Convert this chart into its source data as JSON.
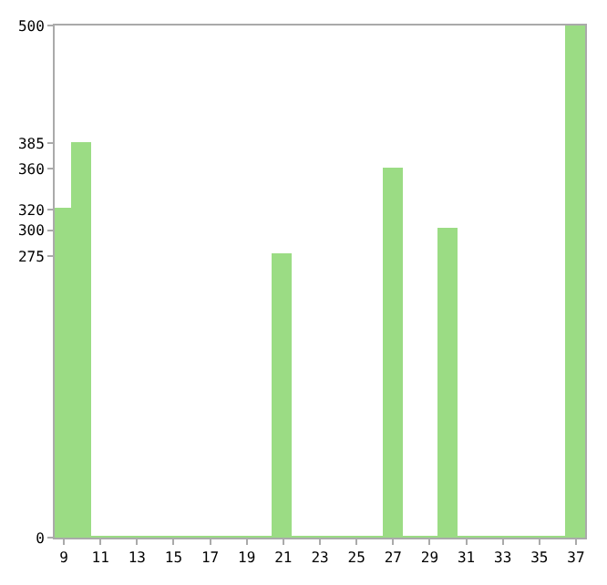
{
  "chart_data": {
    "type": "bar",
    "categories": [
      "9",
      null,
      "11",
      null,
      "13",
      null,
      "15",
      null,
      "17",
      null,
      "19",
      null,
      "21",
      null,
      "23",
      null,
      "25",
      null,
      "27",
      null,
      "29",
      null,
      "31",
      null,
      "33",
      null,
      "35",
      null,
      "37"
    ],
    "values": [
      320,
      385,
      0,
      0,
      0,
      0,
      0,
      0,
      0,
      0,
      0,
      0,
      275,
      0,
      0,
      0,
      0,
      0,
      360,
      0,
      0,
      300,
      0,
      0,
      0,
      0,
      0,
      0,
      500
    ],
    "color": "#9bdc84",
    "ylim": [
      0,
      500
    ],
    "yticks": [
      0,
      275,
      300,
      320,
      360,
      385,
      500
    ]
  }
}
